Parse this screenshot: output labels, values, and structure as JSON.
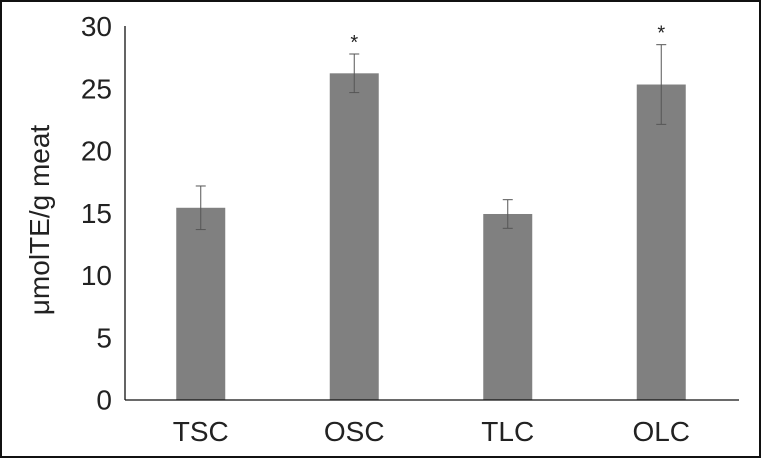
{
  "chart_data": {
    "type": "bar",
    "title": "",
    "xlabel": "",
    "ylabel": "μmolTE/g meat",
    "categories": [
      "TSC",
      "OSC",
      "TLC",
      "OLC"
    ],
    "values": [
      15.4,
      26.2,
      14.9,
      25.3
    ],
    "error": [
      1.75,
      1.55,
      1.15,
      3.2
    ],
    "significance": [
      "",
      "*",
      "",
      "*"
    ],
    "ylim": [
      0,
      30
    ],
    "yticks": [
      0,
      5,
      10,
      15,
      20,
      25,
      30
    ],
    "grid": false,
    "bar_color": "#808080",
    "error_color": "#555555"
  }
}
